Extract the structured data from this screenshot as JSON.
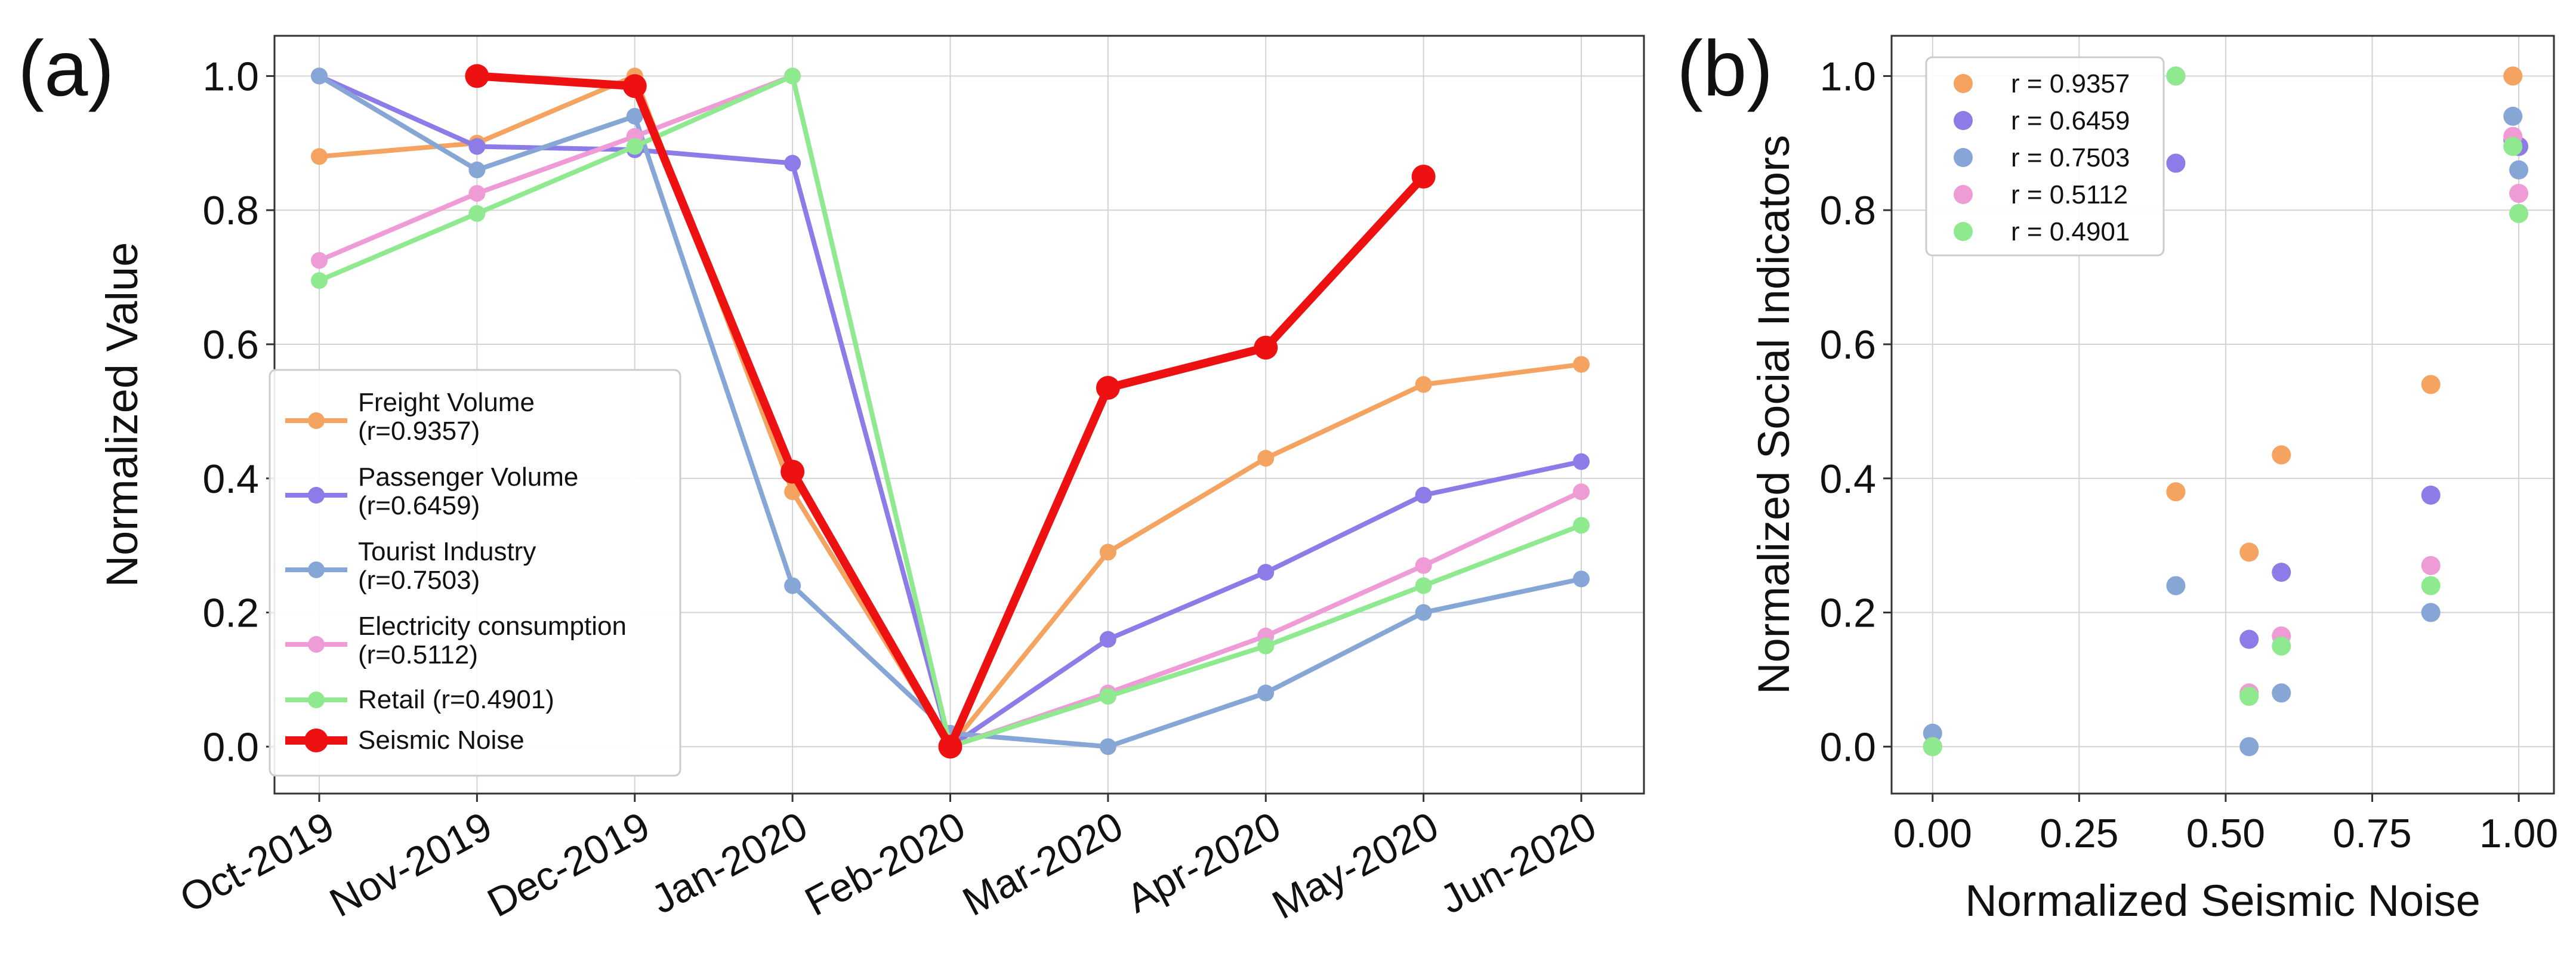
{
  "chart_data": [
    {
      "panel_label": "(a)",
      "type": "line",
      "xlabel": "",
      "ylabel": "Normalized Value",
      "categories": [
        "Oct-2019",
        "Nov-2019",
        "Dec-2019",
        "Jan-2020",
        "Feb-2020",
        "Mar-2020",
        "Apr-2020",
        "May-2020",
        "Jun-2020"
      ],
      "ylim": [
        -0.07,
        1.06
      ],
      "yticks": [
        0.0,
        0.2,
        0.4,
        0.6,
        0.8,
        1.0
      ],
      "ytick_labels": [
        "0.0",
        "0.2",
        "0.4",
        "0.6",
        "0.8",
        "1.0"
      ],
      "grid": true,
      "legend_position": "lower-left",
      "series": [
        {
          "name": "Freight Volume",
          "legend_line1": "Freight Volume",
          "legend_line2": "(r=0.9357)",
          "color": "#F4A460",
          "values": [
            0.88,
            0.9,
            1.0,
            0.38,
            0.0,
            0.29,
            0.43,
            0.54,
            0.57
          ]
        },
        {
          "name": "Passenger Volume",
          "legend_line1": "Passenger Volume",
          "legend_line2": "(r=0.6459)",
          "color": "#8B7CE8",
          "values": [
            1.0,
            0.895,
            0.89,
            0.87,
            0.0,
            0.16,
            0.26,
            0.375,
            0.425
          ]
        },
        {
          "name": "Tourist Industry",
          "legend_line1": "Tourist Industry",
          "legend_line2": "(r=0.7503)",
          "color": "#86A6D6",
          "values": [
            1.0,
            0.86,
            0.94,
            0.24,
            0.02,
            0.0,
            0.08,
            0.2,
            0.25
          ]
        },
        {
          "name": "Electricity consumption",
          "legend_line1": "Electricity consumption",
          "legend_line2": "(r=0.5112)",
          "color": "#EE9BD6",
          "values": [
            0.725,
            0.825,
            0.91,
            1.0,
            0.0,
            0.08,
            0.165,
            0.27,
            0.38
          ]
        },
        {
          "name": "Retail",
          "legend_line1": "Retail (r=0.4901)",
          "legend_line2": "",
          "color": "#8FEA8F",
          "values": [
            0.695,
            0.795,
            0.895,
            1.0,
            0.0,
            0.075,
            0.15,
            0.24,
            0.33
          ]
        },
        {
          "name": "Seismic Noise",
          "legend_line1": "Seismic Noise",
          "legend_line2": "",
          "color": "#EE1111",
          "values": [
            null,
            1.0,
            0.985,
            0.41,
            0.0,
            0.535,
            0.595,
            0.85,
            null
          ]
        }
      ]
    },
    {
      "panel_label": "(b)",
      "type": "scatter",
      "xlabel": "Normalized Seismic Noise",
      "ylabel": "Normalized Social Indicators",
      "xlim": [
        -0.07,
        1.06
      ],
      "ylim": [
        -0.07,
        1.06
      ],
      "xticks": [
        0.0,
        0.25,
        0.5,
        0.75,
        1.0
      ],
      "xtick_labels": [
        "0.00",
        "0.25",
        "0.50",
        "0.75",
        "1.00"
      ],
      "yticks": [
        0.0,
        0.2,
        0.4,
        0.6,
        0.8,
        1.0
      ],
      "ytick_labels": [
        "0.0",
        "0.2",
        "0.4",
        "0.6",
        "0.8",
        "1.0"
      ],
      "grid": true,
      "legend_position": "top-left",
      "x": [
        0.0,
        0.415,
        0.54,
        0.595,
        0.85,
        0.99
      ],
      "series": [
        {
          "name": "r = 0.9357",
          "color": "#F4A460",
          "values": [
            0.0,
            0.38,
            0.29,
            0.435,
            0.54,
            1.0
          ]
        },
        {
          "name": "r = 0.6459",
          "color": "#8B7CE8",
          "values": [
            0.0,
            0.87,
            0.16,
            0.26,
            0.375,
            0.905
          ]
        },
        {
          "name": "r = 0.7503",
          "color": "#86A6D6",
          "values": [
            0.02,
            0.24,
            0.0,
            0.08,
            0.2,
            0.94
          ]
        },
        {
          "name": "r = 0.5112",
          "color": "#EE9BD6",
          "values": [
            0.0,
            1.0,
            0.08,
            0.165,
            0.27,
            0.91
          ]
        },
        {
          "name": "r = 0.4901",
          "color": "#8FEA8F",
          "values": [
            0.0,
            1.0,
            0.075,
            0.15,
            0.24,
            0.895
          ]
        }
      ],
      "extra_points": [
        {
          "series": "r = 0.7503",
          "x": 1.0,
          "y": 0.86
        },
        {
          "series": "r = 0.5112",
          "x": 1.0,
          "y": 0.825
        },
        {
          "series": "r = 0.4901",
          "x": 1.0,
          "y": 0.795
        },
        {
          "series": "r = 0.6459",
          "x": 1.0,
          "y": 0.895
        }
      ]
    }
  ]
}
